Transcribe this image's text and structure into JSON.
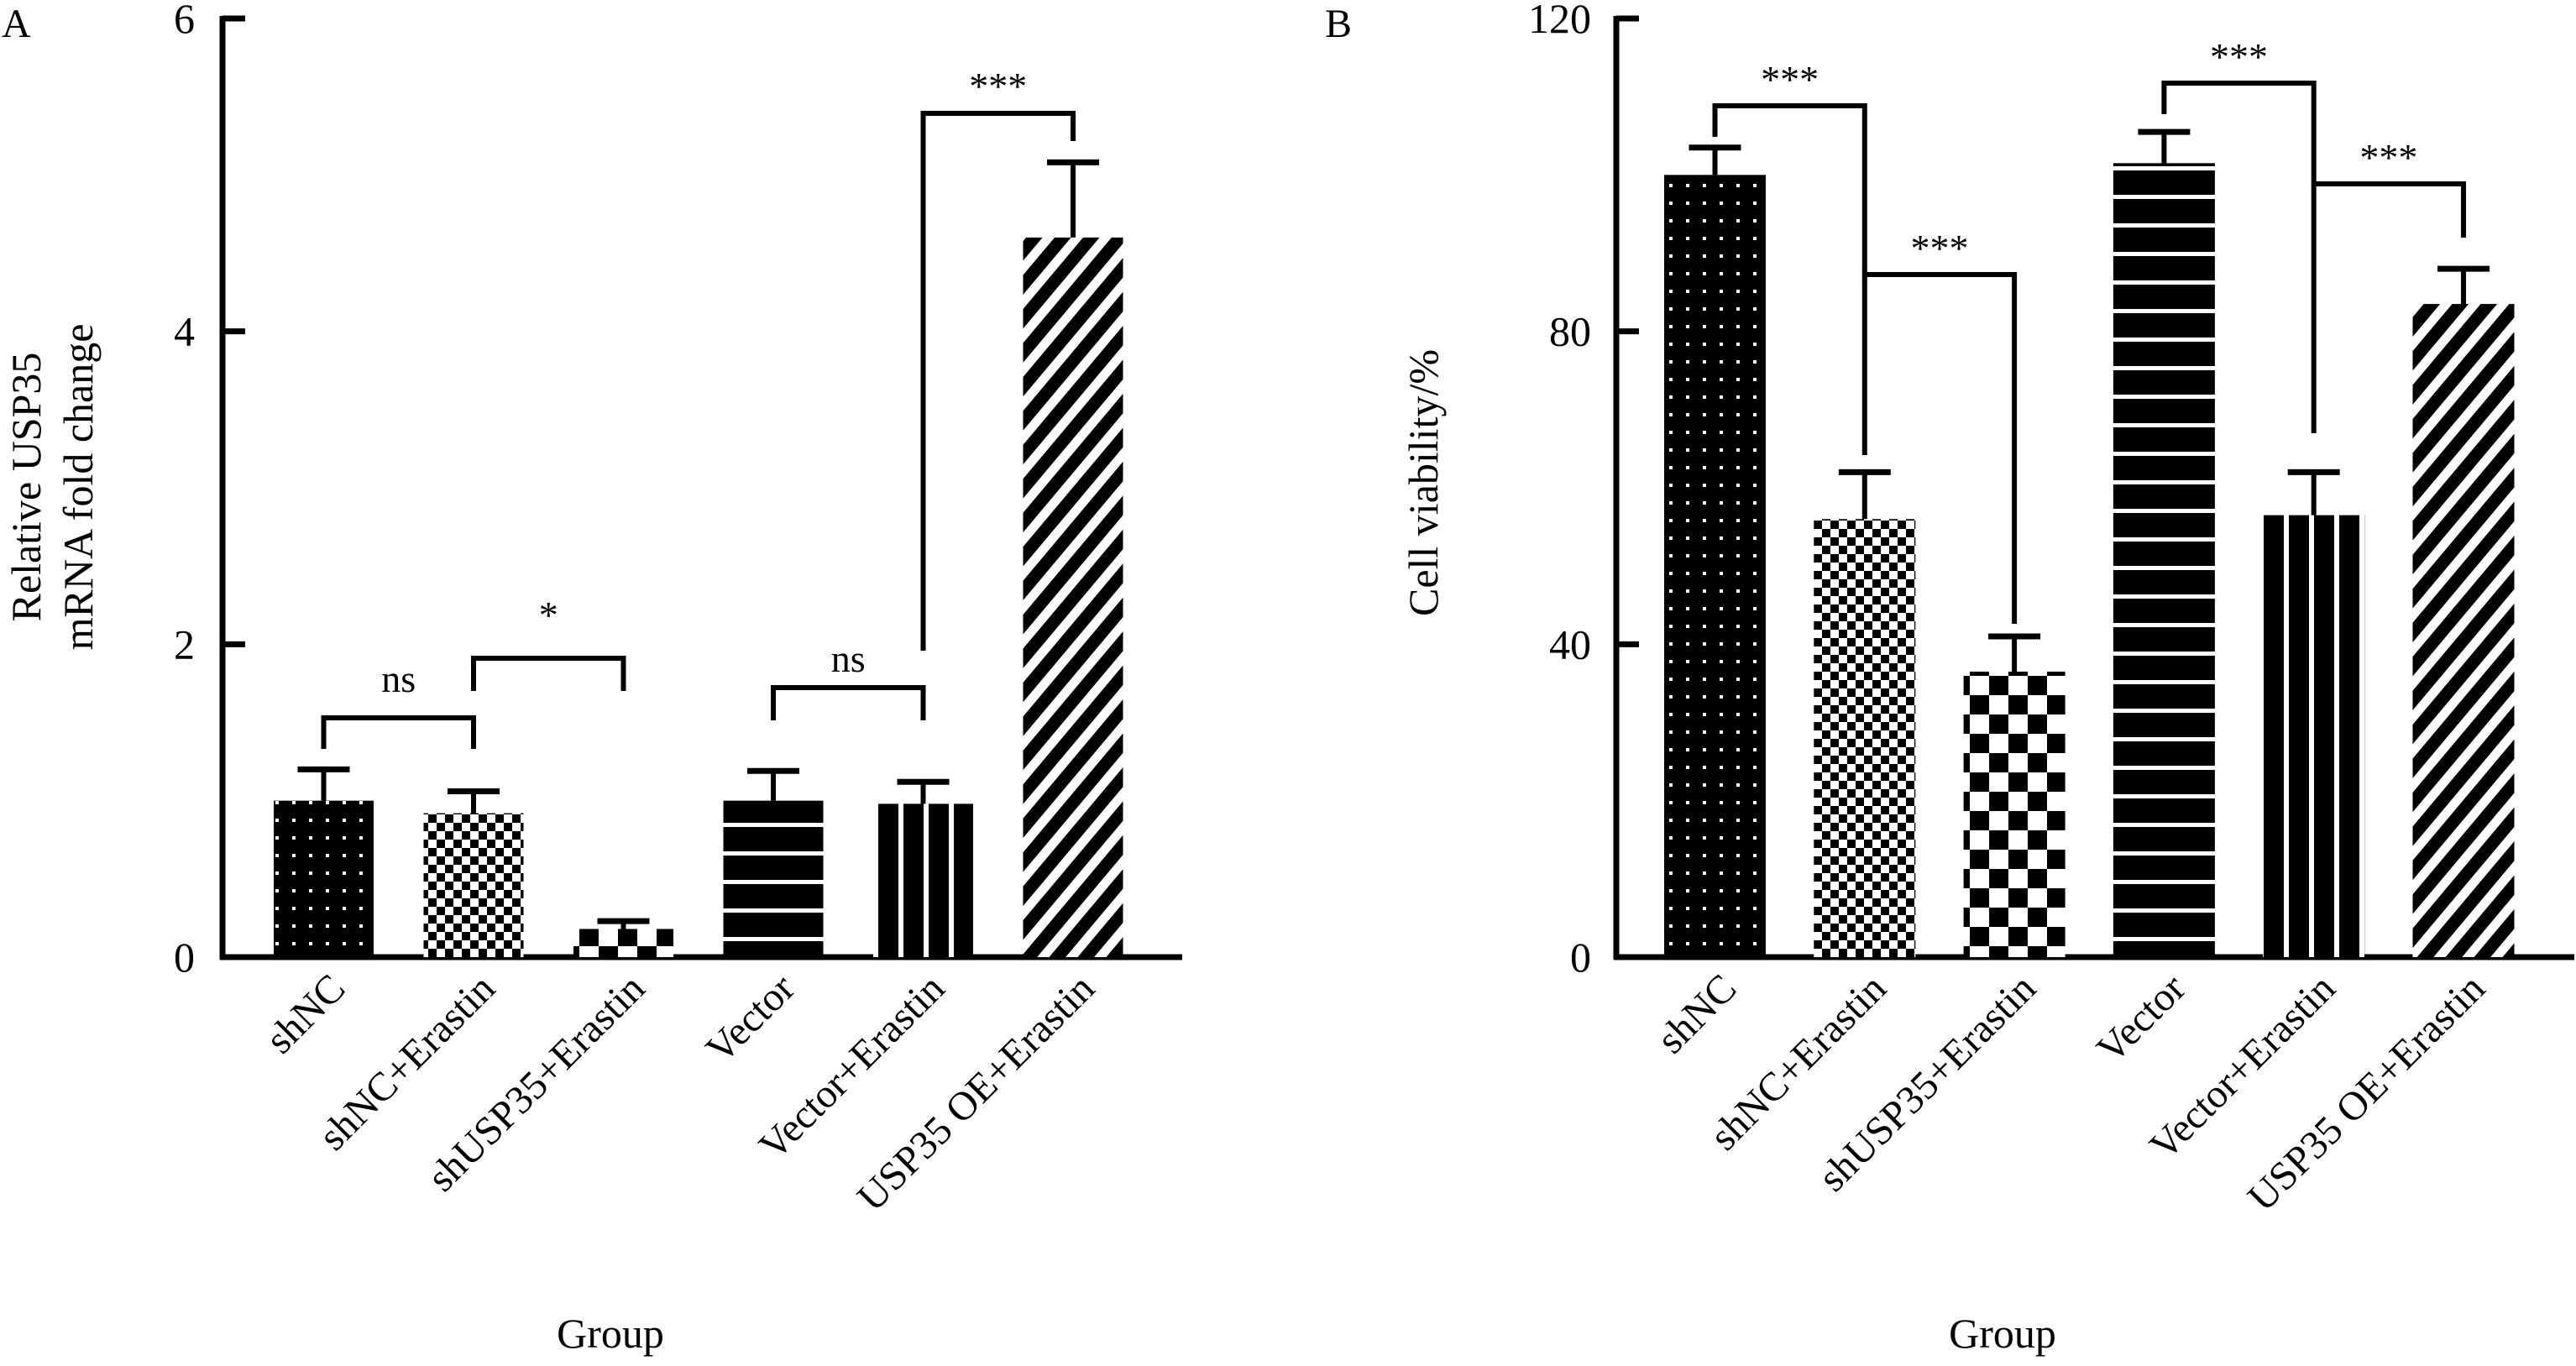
{
  "figure": {
    "background": "#ffffff",
    "ink": "#000000"
  },
  "chart_data": [
    {
      "panel": "A",
      "type": "bar",
      "title": "",
      "xlabel": "Group",
      "ylabel": [
        "Relative USP35",
        "mRNA fold change"
      ],
      "ylim": [
        0,
        6
      ],
      "yticks": [
        "0",
        "2",
        "4",
        "6"
      ],
      "categories": [
        "shNC",
        "shNC+Erastin",
        "shUSP35+Erastin",
        "Vector",
        "Vector+Erastin",
        "USP35 OE+Erastin"
      ],
      "values": [
        1.0,
        0.92,
        0.18,
        1.0,
        0.98,
        4.6
      ],
      "error": [
        0.2,
        0.14,
        0.05,
        0.19,
        0.14,
        0.48
      ],
      "patterns": [
        "dots",
        "checker-fine",
        "checker-large",
        "h-stripes",
        "v-stripes",
        "diagonal"
      ],
      "grid": false,
      "significance": [
        {
          "from": 0,
          "to": 1,
          "label": "ns"
        },
        {
          "from": 1,
          "to": 2,
          "label": "*"
        },
        {
          "from": 3,
          "to": 4,
          "label": "ns"
        },
        {
          "from": 4,
          "to": 5,
          "label": "***"
        }
      ]
    },
    {
      "panel": "B",
      "type": "bar",
      "title": "",
      "xlabel": "Group",
      "ylabel": [
        "Cell viability/%"
      ],
      "ylim": [
        0,
        120
      ],
      "yticks": [
        "0",
        "40",
        "80",
        "120"
      ],
      "categories": [
        "shNC",
        "shNC+Erastin",
        "shUSP35+Erastin",
        "Vector",
        "Vector+Erastin",
        "USP35 OE+Erastin"
      ],
      "values": [
        100,
        56,
        36.5,
        101.5,
        56.5,
        83.5
      ],
      "error": [
        3.5,
        6,
        4.5,
        4,
        5.5,
        4.5
      ],
      "patterns": [
        "dots",
        "checker-fine",
        "checker-large",
        "h-stripes",
        "v-stripes",
        "diagonal"
      ],
      "grid": false,
      "significance": [
        {
          "from": 0,
          "to": 1,
          "label": "***"
        },
        {
          "from": 1,
          "to": 2,
          "label": "***"
        },
        {
          "from": 3,
          "to": 4,
          "label": "***"
        },
        {
          "from": 4,
          "to": 5,
          "label": "***"
        }
      ]
    }
  ]
}
